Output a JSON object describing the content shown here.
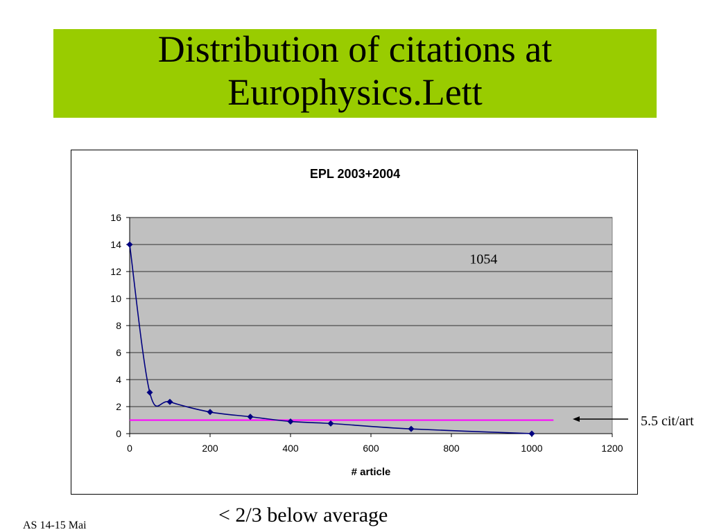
{
  "slide": {
    "title_line1": "Distribution of citations at",
    "title_line2": "Europhysics.Lett",
    "title_band_color": "#99cc00",
    "side_label": "5.5 cit/art",
    "bottom_note": "< 2/3 below average",
    "footer": "AS 14-15 Mai"
  },
  "chart_data": {
    "type": "line",
    "title": "EPL 2003+2004",
    "xlabel": "# article",
    "ylabel": "",
    "xlim": [
      0,
      1200
    ],
    "ylim": [
      0,
      16
    ],
    "xticks": [
      0,
      200,
      400,
      600,
      800,
      1000,
      1200
    ],
    "yticks": [
      0,
      2,
      4,
      6,
      8,
      10,
      12,
      14,
      16
    ],
    "grid": true,
    "plot_background": "#c0c0c0",
    "series": [
      {
        "color": "#000080",
        "points": [
          [
            0,
            14
          ],
          [
            50,
            3.05
          ],
          [
            100,
            2.35
          ],
          [
            200,
            1.6
          ],
          [
            300,
            1.25
          ],
          [
            400,
            0.9
          ],
          [
            500,
            0.75
          ],
          [
            700,
            0.35
          ],
          [
            1000,
            0
          ]
        ]
      }
    ],
    "reference_line": {
      "y": 1,
      "x_start": 0,
      "x_end": 1054,
      "color": "#ff00ff"
    },
    "annotation": "1054",
    "annotation_position": {
      "x": 880,
      "y": 12.6
    }
  }
}
